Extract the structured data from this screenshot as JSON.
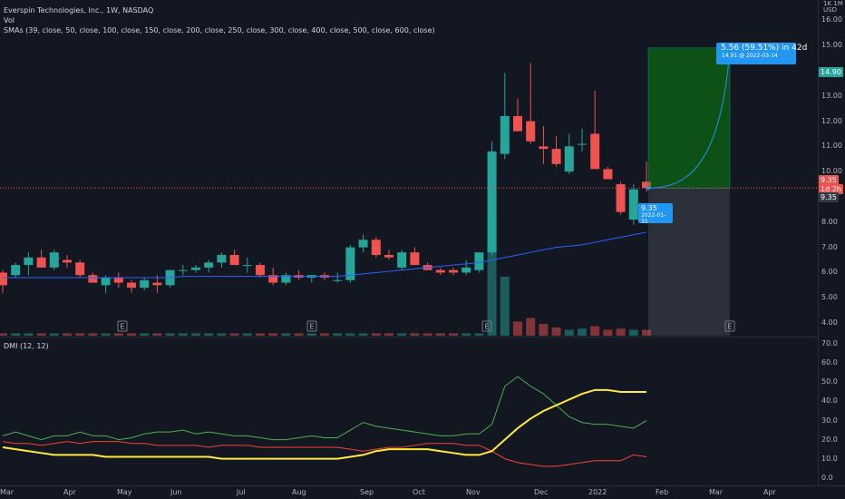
{
  "header": {
    "symbol_line": "Everspin Technologies, Inc., 1W, NASDAQ",
    "vol_label": "Vol",
    "sma_label": "SMAs (39, close, 50, close, 100, close, 150, close, 200, close, 250, close, 300, close, 400, close, 500, close, 600, close)"
  },
  "price_axis": {
    "currency": "USD",
    "scale_mark": "1K 1M",
    "ticks": [
      "16.00",
      "15.00",
      "14.00",
      "13.00",
      "12.00",
      "11.00",
      "10.00",
      "9.00",
      "8.00",
      "7.00",
      "6.00",
      "5.00",
      "4.00"
    ]
  },
  "dmi_axis": {
    "ticks": [
      "70.0",
      "60.0",
      "50.0",
      "40.0",
      "30.0",
      "20.0",
      "10.0",
      "0.0"
    ]
  },
  "dmi_label": "DMI (12, 12)",
  "time_axis": [
    "Mar",
    "Apr",
    "May",
    "Jun",
    "Jul",
    "Aug",
    "Sep",
    "Oct",
    "Nov",
    "Dec",
    "2022",
    "Feb",
    "Mar",
    "Apr"
  ],
  "tags": {
    "target_price": "14.90",
    "current_price": "9.35",
    "countdown": "1d 2h",
    "crosshair_price": "9.35",
    "entry_price": "9.35",
    "entry_date": "2022-01-31",
    "projection_main": "5.56 (59.51%) in 42d",
    "projection_sub": "14.91 @ 2022-03-14"
  },
  "earnings_marker": "E",
  "colors": {
    "up": "#26a69a",
    "down": "#ef5350",
    "bg": "#131722",
    "sma": "#2962ff"
  },
  "chart_data": {
    "type": "candlestick",
    "title": "Everspin Technologies, Inc., 1W, NASDAQ",
    "candles": [
      {
        "o": 6.0,
        "h": 6.1,
        "l": 5.2,
        "c": 5.5
      },
      {
        "o": 5.9,
        "h": 6.4,
        "l": 5.8,
        "c": 6.3
      },
      {
        "o": 6.3,
        "h": 6.8,
        "l": 5.9,
        "c": 6.6
      },
      {
        "o": 6.6,
        "h": 6.9,
        "l": 6.2,
        "c": 6.2
      },
      {
        "o": 6.2,
        "h": 6.9,
        "l": 6.1,
        "c": 6.8
      },
      {
        "o": 6.5,
        "h": 6.7,
        "l": 6.2,
        "c": 6.4
      },
      {
        "o": 6.4,
        "h": 6.5,
        "l": 5.8,
        "c": 5.9
      },
      {
        "o": 5.9,
        "h": 6.0,
        "l": 5.6,
        "c": 5.6
      },
      {
        "o": 5.5,
        "h": 5.9,
        "l": 5.2,
        "c": 5.8
      },
      {
        "o": 5.8,
        "h": 6.0,
        "l": 5.4,
        "c": 5.6
      },
      {
        "o": 5.6,
        "h": 5.7,
        "l": 5.2,
        "c": 5.4
      },
      {
        "o": 5.4,
        "h": 5.8,
        "l": 5.3,
        "c": 5.7
      },
      {
        "o": 5.6,
        "h": 5.9,
        "l": 5.2,
        "c": 5.5
      },
      {
        "o": 5.5,
        "h": 6.1,
        "l": 5.4,
        "c": 6.1
      },
      {
        "o": 6.1,
        "h": 6.3,
        "l": 5.9,
        "c": 6.1
      },
      {
        "o": 6.1,
        "h": 6.3,
        "l": 6.0,
        "c": 6.2
      },
      {
        "o": 6.2,
        "h": 6.5,
        "l": 6.0,
        "c": 6.4
      },
      {
        "o": 6.4,
        "h": 6.8,
        "l": 6.2,
        "c": 6.7
      },
      {
        "o": 6.7,
        "h": 6.9,
        "l": 6.3,
        "c": 6.3
      },
      {
        "o": 6.3,
        "h": 6.6,
        "l": 6.0,
        "c": 6.3
      },
      {
        "o": 6.3,
        "h": 6.4,
        "l": 5.8,
        "c": 5.9
      },
      {
        "o": 5.9,
        "h": 6.2,
        "l": 5.5,
        "c": 5.6
      },
      {
        "o": 5.6,
        "h": 6.0,
        "l": 5.5,
        "c": 5.9
      },
      {
        "o": 5.9,
        "h": 6.1,
        "l": 5.7,
        "c": 5.8
      },
      {
        "o": 5.8,
        "h": 5.9,
        "l": 5.6,
        "c": 5.9
      },
      {
        "o": 5.9,
        "h": 6.0,
        "l": 5.7,
        "c": 5.8
      },
      {
        "o": 5.7,
        "h": 6.0,
        "l": 5.6,
        "c": 5.7
      },
      {
        "o": 5.7,
        "h": 7.1,
        "l": 5.6,
        "c": 7.0
      },
      {
        "o": 7.0,
        "h": 7.5,
        "l": 6.8,
        "c": 7.3
      },
      {
        "o": 7.3,
        "h": 7.4,
        "l": 6.6,
        "c": 6.7
      },
      {
        "o": 6.7,
        "h": 6.9,
        "l": 6.5,
        "c": 6.6
      },
      {
        "o": 6.2,
        "h": 6.9,
        "l": 6.1,
        "c": 6.8
      },
      {
        "o": 6.8,
        "h": 7.0,
        "l": 6.3,
        "c": 6.3
      },
      {
        "o": 6.3,
        "h": 6.4,
        "l": 6.1,
        "c": 6.1
      },
      {
        "o": 6.1,
        "h": 6.2,
        "l": 5.9,
        "c": 6.0
      },
      {
        "o": 6.1,
        "h": 6.2,
        "l": 5.9,
        "c": 6.0
      },
      {
        "o": 6.0,
        "h": 6.5,
        "l": 5.9,
        "c": 6.2
      },
      {
        "o": 6.1,
        "h": 6.8,
        "l": 6.0,
        "c": 6.8
      },
      {
        "o": 6.8,
        "h": 11.2,
        "l": 6.7,
        "c": 10.8
      },
      {
        "o": 10.7,
        "h": 13.9,
        "l": 10.5,
        "c": 12.2
      },
      {
        "o": 12.2,
        "h": 12.9,
        "l": 11.6,
        "c": 11.6
      },
      {
        "o": 12.0,
        "h": 14.3,
        "l": 11.1,
        "c": 11.2
      },
      {
        "o": 11.0,
        "h": 11.8,
        "l": 10.3,
        "c": 10.9
      },
      {
        "o": 10.9,
        "h": 11.4,
        "l": 10.2,
        "c": 10.3
      },
      {
        "o": 10.0,
        "h": 11.5,
        "l": 9.9,
        "c": 11.0
      },
      {
        "o": 11.1,
        "h": 11.7,
        "l": 10.8,
        "c": 11.1
      },
      {
        "o": 11.5,
        "h": 13.2,
        "l": 10.1,
        "c": 10.1
      },
      {
        "o": 10.1,
        "h": 10.2,
        "l": 9.7,
        "c": 9.7
      },
      {
        "o": 9.5,
        "h": 9.6,
        "l": 8.3,
        "c": 8.4
      },
      {
        "o": 8.1,
        "h": 9.5,
        "l": 7.9,
        "c": 9.3
      },
      {
        "o": 9.6,
        "h": 10.4,
        "l": 9.2,
        "c": 9.35
      }
    ],
    "volume": [
      0.02,
      0.02,
      0.02,
      0.02,
      0.02,
      0.02,
      0.02,
      0.02,
      0.02,
      0.02,
      0.02,
      0.02,
      0.02,
      0.02,
      0.02,
      0.02,
      0.02,
      0.02,
      0.02,
      0.02,
      0.02,
      0.02,
      0.02,
      0.02,
      0.02,
      0.02,
      0.02,
      0.02,
      0.02,
      0.02,
      0.02,
      0.02,
      0.02,
      0.02,
      0.02,
      0.02,
      0.02,
      0.02,
      1.0,
      0.5,
      0.12,
      0.15,
      0.1,
      0.07,
      0.05,
      0.06,
      0.08,
      0.05,
      0.06,
      0.05,
      0.05
    ],
    "sma_series": [
      {
        "name": "SMA 39",
        "values": [
          5.8,
          5.8,
          5.8,
          5.8,
          5.8,
          5.8,
          5.8,
          5.8,
          5.8,
          5.8,
          5.8,
          5.8,
          5.8,
          5.8,
          5.85,
          5.85,
          5.85,
          5.85,
          5.85,
          5.85,
          5.85,
          5.85,
          5.85,
          5.85,
          5.85,
          5.85,
          5.85,
          5.9,
          5.95,
          6.0,
          6.05,
          6.1,
          6.15,
          6.2,
          6.25,
          6.3,
          6.35,
          6.4,
          6.5,
          6.6,
          6.7,
          6.8,
          6.9,
          7.0,
          7.05,
          7.1,
          7.2,
          7.3,
          7.4,
          7.5,
          7.6
        ]
      }
    ],
    "dmi": {
      "adx": [
        16,
        15,
        14,
        13,
        12,
        12,
        12,
        12,
        11,
        11,
        11,
        11,
        11,
        11,
        11,
        11,
        11,
        10,
        10,
        10,
        10,
        10,
        10,
        10,
        10,
        10,
        10,
        11,
        12,
        14,
        15,
        15,
        15,
        15,
        14,
        13,
        12,
        12,
        14,
        20,
        26,
        31,
        35,
        38,
        41,
        44,
        46,
        46,
        45,
        45,
        45
      ],
      "di_plus": [
        22,
        24,
        22,
        20,
        22,
        22,
        24,
        22,
        22,
        20,
        21,
        23,
        24,
        24,
        25,
        23,
        24,
        23,
        22,
        22,
        21,
        20,
        20,
        21,
        22,
        21,
        21,
        25,
        29,
        27,
        26,
        25,
        24,
        23,
        22,
        22,
        23,
        23,
        28,
        48,
        53,
        48,
        44,
        38,
        32,
        29,
        28,
        28,
        27,
        26,
        30
      ],
      "di_minus": [
        19,
        18,
        18,
        17,
        18,
        19,
        18,
        19,
        19,
        19,
        18,
        18,
        17,
        17,
        17,
        17,
        16,
        17,
        17,
        17,
        16,
        16,
        16,
        16,
        16,
        16,
        16,
        15,
        14,
        15,
        16,
        16,
        17,
        18,
        18,
        18,
        17,
        17,
        14,
        10,
        8,
        7,
        6,
        6,
        7,
        8,
        9,
        9,
        9,
        12,
        11
      ]
    },
    "ylim": [
      3.5,
      16.8
    ],
    "dmi_ylim": [
      -3,
      73
    ]
  }
}
